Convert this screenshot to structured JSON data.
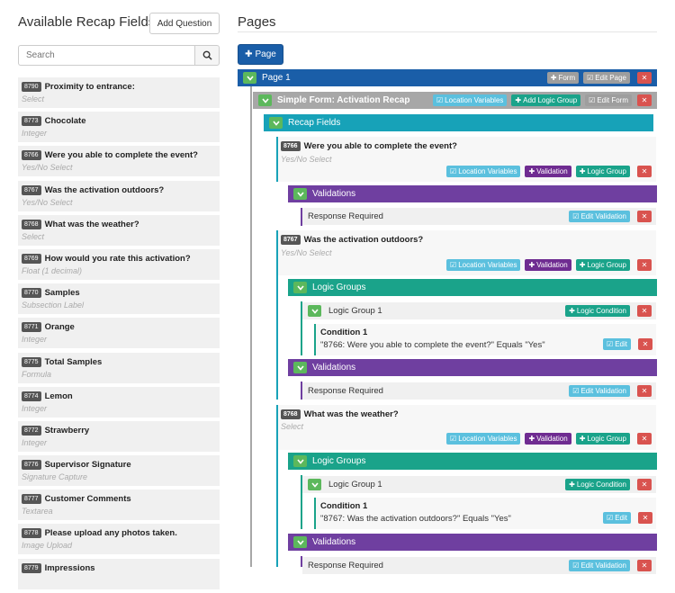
{
  "left": {
    "title": "Available Recap Fields",
    "add_question": "Add Question",
    "search_placeholder": "Search",
    "fields": [
      {
        "id": "8790",
        "name": "Proximity to entrance:",
        "type": "Select"
      },
      {
        "id": "8773",
        "name": "Chocolate",
        "type": "Integer"
      },
      {
        "id": "8766",
        "name": "Were you able to complete the event?",
        "type": "Yes/No Select"
      },
      {
        "id": "8767",
        "name": "Was the activation outdoors?",
        "type": "Yes/No Select"
      },
      {
        "id": "8768",
        "name": "What was the weather?",
        "type": "Select"
      },
      {
        "id": "8769",
        "name": "How would you rate this activation?",
        "type": "Float (1 decimal)"
      },
      {
        "id": "8770",
        "name": "Samples",
        "type": "Subsection Label"
      },
      {
        "id": "8771",
        "name": "Orange",
        "type": "Integer"
      },
      {
        "id": "8775",
        "name": "Total Samples",
        "type": "Formula"
      },
      {
        "id": "8774",
        "name": "Lemon",
        "type": "Integer"
      },
      {
        "id": "8772",
        "name": "Strawberry",
        "type": "Integer"
      },
      {
        "id": "8776",
        "name": "Supervisor Signature",
        "type": "Signature Capture"
      },
      {
        "id": "8777",
        "name": "Customer Comments",
        "type": "Textarea"
      },
      {
        "id": "8778",
        "name": "Please upload any photos taken.",
        "type": "Image Upload"
      },
      {
        "id": "8779",
        "name": "Impressions",
        "type": ""
      }
    ]
  },
  "right": {
    "title": "Pages",
    "page_button": "Page",
    "page1": {
      "label": "Page 1",
      "form_btn": "Form",
      "edit_page_btn": "Edit Page"
    },
    "form": {
      "label": "Simple Form: Activation Recap",
      "location_vars": "Location Variables",
      "add_logic_group": "Add Logic Group",
      "edit_form": "Edit Form"
    },
    "recap_fields": "Recap Fields",
    "btn_location_vars": "Location Variables",
    "btn_validation": "Validation",
    "btn_logic_group": "Logic Group",
    "btn_logic_condition": "Logic Condition",
    "btn_edit_validation": "Edit Validation",
    "btn_edit": "Edit",
    "validations_label": "Validations",
    "logic_groups_label": "Logic Groups",
    "response_required": "Response Required",
    "questions": [
      {
        "id": "8766",
        "name": "Were you able to complete the event?",
        "type": "Yes/No Select"
      },
      {
        "id": "8767",
        "name": "Was the activation outdoors?",
        "type": "Yes/No Select",
        "logic_group": "Logic Group 1",
        "condition_title": "Condition 1",
        "condition_text": "\"8766: Were you able to complete the event?\" Equals \"Yes\""
      },
      {
        "id": "8768",
        "name": "What was the weather?",
        "type": "Select",
        "logic_group": "Logic Group 1",
        "condition_title": "Condition 1",
        "condition_text": "\"8767: Was the activation outdoors?\" Equals \"Yes\""
      }
    ],
    "colors": {
      "primary": "#1a5ea8",
      "teal": "#17a2b8",
      "purple": "#6f3fa0",
      "green": "#1aa38a",
      "red": "#d9534f",
      "info": "#5bc0de"
    }
  }
}
